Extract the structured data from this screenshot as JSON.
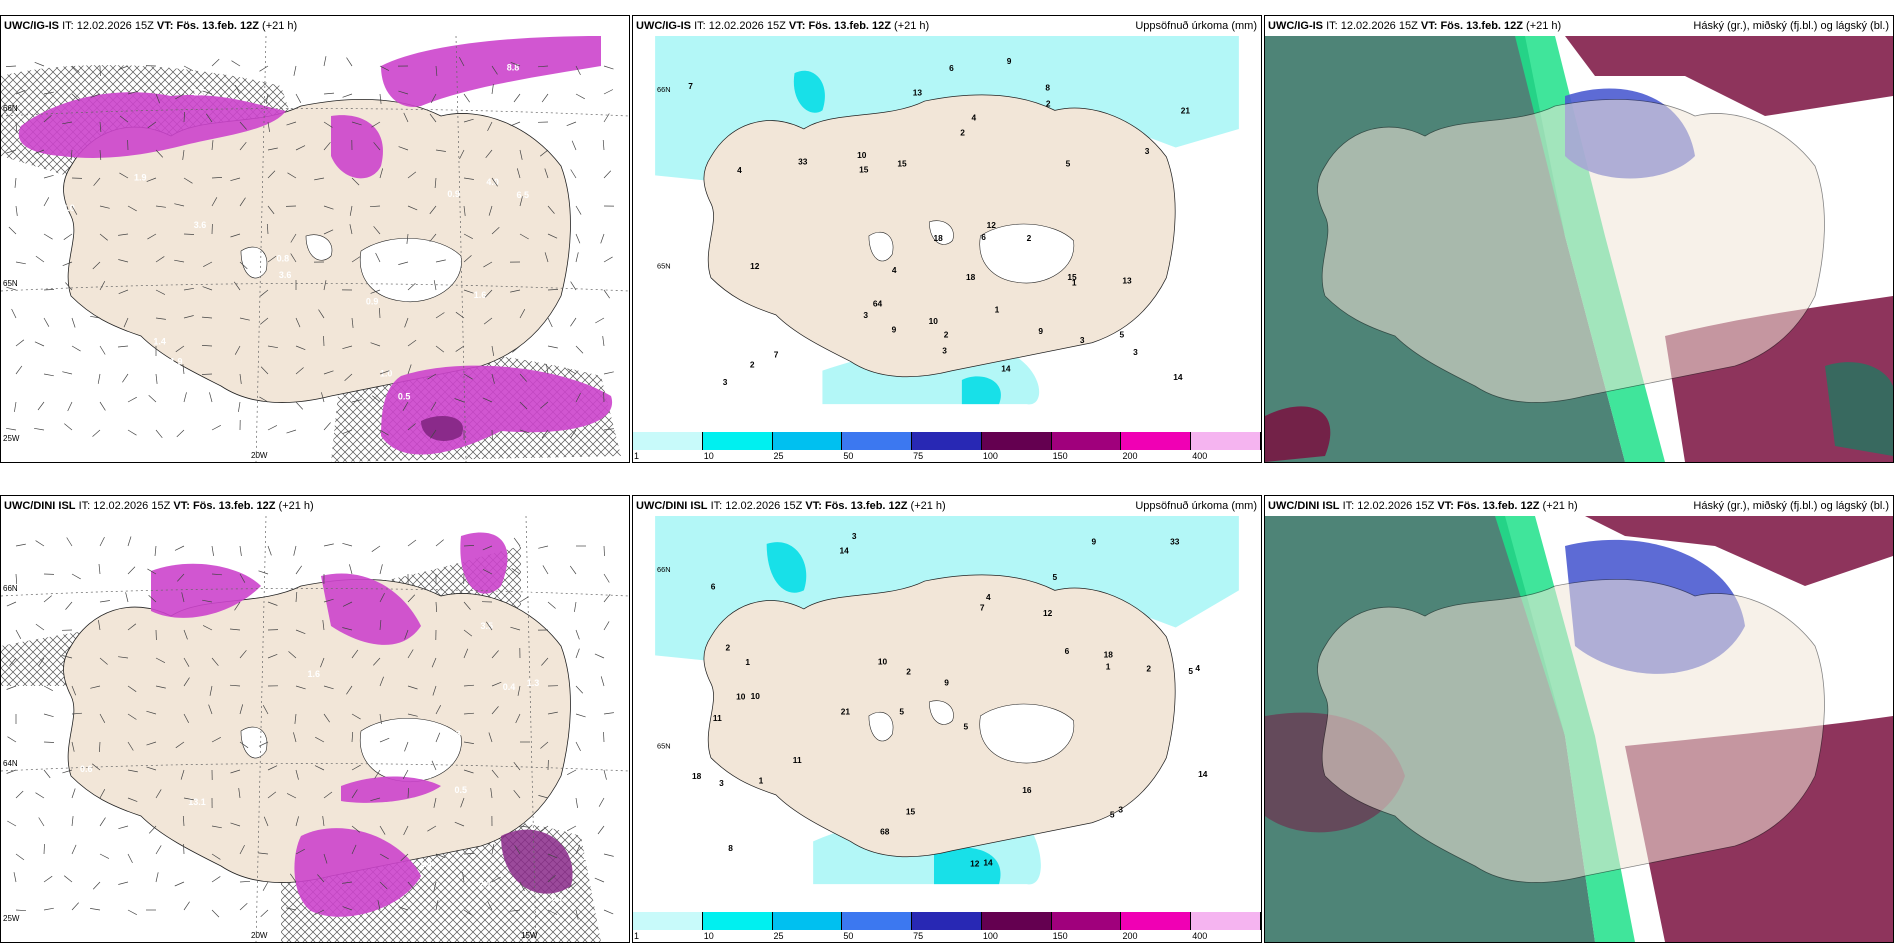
{
  "panels": [
    {
      "model": "UWC/IG-IS",
      "it_label": "IT:",
      "it": "12.02.2026 15Z",
      "vt_label": "VT:",
      "vt": "Fös. 13.feb. 12Z",
      "lead": "(+21 h)",
      "title_right": ""
    },
    {
      "model": "UWC/IG-IS",
      "it_label": "IT:",
      "it": "12.02.2026 15Z",
      "vt_label": "VT:",
      "vt": "Fös. 13.feb. 12Z",
      "lead": "(+21 h)",
      "title_right": "Uppsöfnuð úrkoma (mm)"
    },
    {
      "model": "UWC/IG-IS",
      "it_label": "IT:",
      "it": "12.02.2026 15Z",
      "vt_label": "VT:",
      "vt": "Fös. 13.feb. 12Z",
      "lead": "(+21 h)",
      "title_right": "Háský (gr.), miðský (fj.bl.) og lágský (bl.)"
    },
    {
      "model": "UWC/DINI ISL",
      "it_label": "IT:",
      "it": "12.02.2026 15Z",
      "vt_label": "VT:",
      "vt": "Fös. 13.feb. 12Z",
      "lead": "(+21 h)",
      "title_right": ""
    },
    {
      "model": "UWC/DINI ISL",
      "it_label": "IT:",
      "it": "12.02.2026 15Z",
      "vt_label": "VT:",
      "vt": "Fös. 13.feb. 12Z",
      "lead": "(+21 h)",
      "title_right": "Uppsöfnuð úrkoma (mm)"
    },
    {
      "model": "UWC/DINI ISL",
      "it_label": "IT:",
      "it": "12.02.2026 15Z",
      "vt_label": "VT:",
      "vt": "Fös. 13.feb. 12Z",
      "lead": "(+21 h)",
      "title_right": "Háský (gr.), miðský (fj.bl.) og lágský (bl.)"
    }
  ],
  "colorbar": {
    "ticks": [
      "1",
      "10",
      "25",
      "50",
      "75",
      "100",
      "150",
      "200",
      "400"
    ],
    "colors": [
      "#c8fafa",
      "#00f0f0",
      "#00c0f0",
      "#3c78f0",
      "#2828b4",
      "#640050",
      "#a0007c",
      "#f000b4",
      "#f5b4f0"
    ]
  },
  "map_colors": {
    "land": "#f2e6d8",
    "ice": "#ffffff",
    "sea": "#ffffff",
    "precip": "#cc44cc",
    "precip_dark": "#8a2a8a",
    "light_precip": "#b3f7f7",
    "cyan": "#18e0e8",
    "cloud_high": "#2f6f5f",
    "cloud_mid": "#4b5bd0",
    "cloud_low": "#7a1040",
    "green": "#1ee08a"
  },
  "axis_labels": {
    "lat66": "66N",
    "lat65": "65N",
    "lat64": "64N",
    "lon25": "25W",
    "lon20": "20W",
    "lon15": "15W"
  },
  "values": {
    "p1": [
      "0.5",
      "2.6",
      "1.4",
      "1.9",
      "4.0",
      "1.0",
      "1.3",
      "3.6",
      "3.6",
      "1.9",
      "4.2",
      "2.8",
      "0.8",
      "0.9",
      "0.9",
      "8.8",
      "13.0",
      "4.6",
      "1.6",
      "6.5"
    ],
    "p2": [
      "2",
      "13",
      "12",
      "18",
      "13",
      "9",
      "5",
      "8",
      "3",
      "3",
      "14",
      "15",
      "9",
      "6",
      "9",
      "10",
      "15",
      "12",
      "18",
      "21",
      "7",
      "7",
      "3",
      "2",
      "1",
      "2",
      "15",
      "2",
      "3",
      "1",
      "3",
      "4",
      "4",
      "3",
      "6",
      "14",
      "2",
      "5",
      "4",
      "10",
      "33",
      "64"
    ],
    "p4": [
      "2.6",
      "2.0",
      "0.4",
      "4.1",
      "1.4",
      "3.5",
      "1.3",
      "1.6",
      "1.0",
      "-2.1",
      "0.3",
      "0.5",
      "9.5",
      "0.5",
      "13.1",
      "0.7",
      "-1.0",
      "0.6"
    ],
    "p5": [
      "3",
      "5",
      "5",
      "5",
      "5",
      "10",
      "6",
      "12",
      "11",
      "7",
      "9",
      "8",
      "14",
      "21",
      "12",
      "14",
      "15",
      "9",
      "6",
      "11",
      "1",
      "10",
      "4",
      "2",
      "18",
      "2",
      "2",
      "1",
      "3",
      "3",
      "5",
      "4",
      "1",
      "10",
      "16",
      "14",
      "18",
      "68",
      "33"
    ]
  }
}
